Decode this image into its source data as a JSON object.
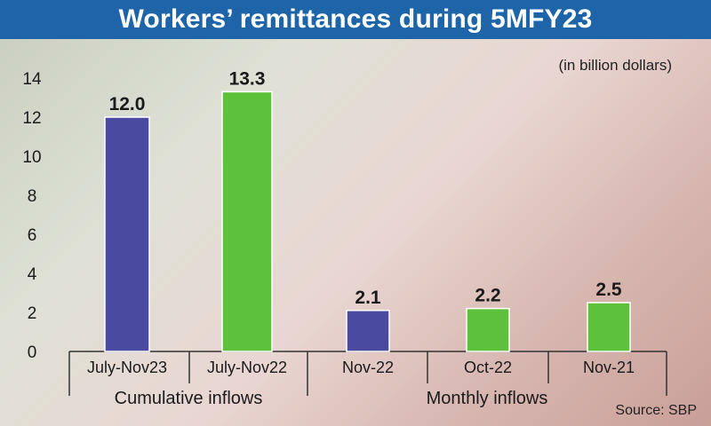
{
  "title": "Workers’ remittances during 5MFY23",
  "unit_note": "(in billion dollars)",
  "source": "Source: SBP",
  "chart_data": {
    "type": "bar",
    "title": "Workers’ remittances during 5MFY23",
    "categories": [
      "July-Nov23",
      "July-Nov22",
      "Nov-22",
      "Oct-22",
      "Nov-21"
    ],
    "values": [
      12.0,
      13.3,
      2.1,
      2.2,
      2.5
    ],
    "value_labels": [
      "12.0",
      "13.3",
      "2.1",
      "2.2",
      "2.5"
    ],
    "bar_colors": [
      "#4a4aa0",
      "#5ec13c",
      "#4a4aa0",
      "#5ec13c",
      "#5ec13c"
    ],
    "groups": [
      {
        "label": "Cumulative inflows",
        "categories": [
          "July-Nov23",
          "July-Nov22"
        ]
      },
      {
        "label": "Monthly inflows",
        "categories": [
          "Nov-22",
          "Oct-22",
          "Nov-21"
        ]
      }
    ],
    "ylim": [
      0,
      14
    ],
    "yticks": [
      0,
      2,
      4,
      6,
      8,
      10,
      12,
      14
    ],
    "grid": false,
    "xlabel": "",
    "ylabel": ""
  }
}
